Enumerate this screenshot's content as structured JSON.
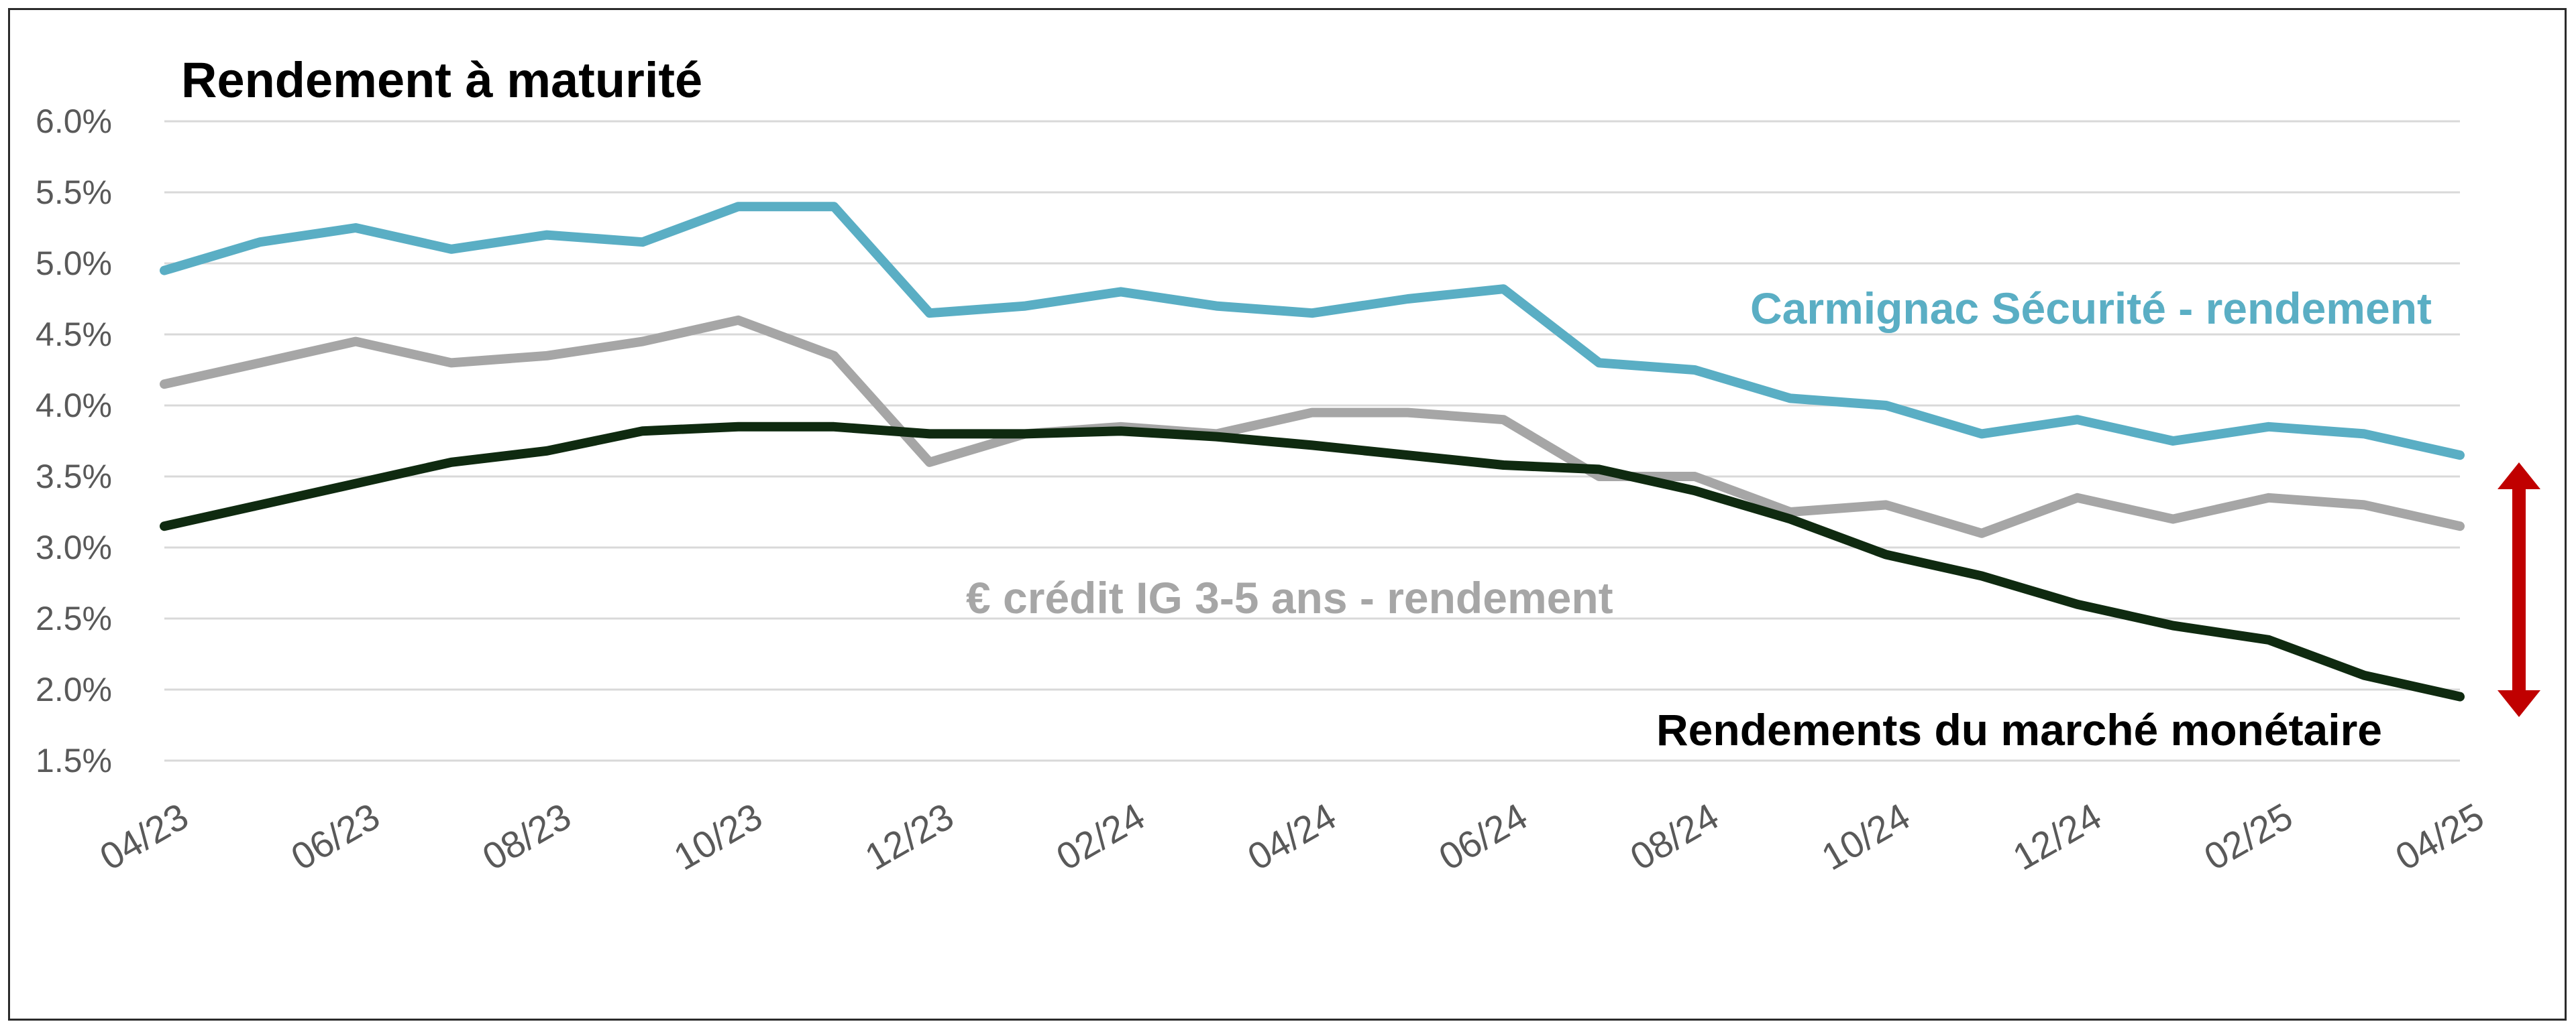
{
  "chart_data": {
    "type": "line",
    "title": "Rendement à maturité",
    "xlabel": "",
    "ylabel": "",
    "x_tick_labels": [
      "04/23",
      "06/23",
      "08/23",
      "10/23",
      "12/23",
      "02/24",
      "04/24",
      "06/24",
      "08/24",
      "10/24",
      "12/24",
      "02/25",
      "04/25"
    ],
    "y_tick_labels": [
      "6.0%",
      "5.5%",
      "5.0%",
      "4.5%",
      "4.0%",
      "3.5%",
      "3.0%",
      "2.5%",
      "2.0%",
      "1.5%"
    ],
    "ylim": [
      1.5,
      6.0
    ],
    "grid": true,
    "legend": "inline",
    "x": [
      "2023-04",
      "2023-05",
      "2023-06",
      "2023-07",
      "2023-08",
      "2023-09",
      "2023-10",
      "2023-11",
      "2023-12",
      "2024-01",
      "2024-02",
      "2024-03",
      "2024-04",
      "2024-05",
      "2024-06",
      "2024-07",
      "2024-08",
      "2024-09",
      "2024-10",
      "2024-11",
      "2024-12",
      "2025-01",
      "2025-02",
      "2025-03",
      "2025-04"
    ],
    "series": [
      {
        "name": "Carmignac Sécurité - rendement",
        "color": "#5aaec4",
        "values": [
          4.95,
          5.15,
          5.25,
          5.1,
          5.2,
          5.15,
          5.4,
          5.4,
          4.65,
          4.7,
          4.8,
          4.7,
          4.65,
          4.75,
          4.82,
          4.3,
          4.25,
          4.05,
          4.0,
          3.8,
          3.9,
          3.75,
          3.85,
          3.8,
          3.65
        ]
      },
      {
        "name": "€ crédit IG 3-5 ans - rendement",
        "color": "#a6a6a6",
        "values": [
          4.15,
          4.3,
          4.45,
          4.3,
          4.35,
          4.45,
          4.6,
          4.35,
          3.6,
          3.8,
          3.85,
          3.8,
          3.95,
          3.95,
          3.9,
          3.5,
          3.5,
          3.25,
          3.3,
          3.1,
          3.35,
          3.2,
          3.35,
          3.3,
          3.15
        ]
      },
      {
        "name": "Rendements du marché monétaire",
        "color": "#0f2a10",
        "values": [
          3.15,
          3.3,
          3.45,
          3.6,
          3.68,
          3.82,
          3.85,
          3.85,
          3.8,
          3.8,
          3.82,
          3.78,
          3.72,
          3.65,
          3.58,
          3.55,
          3.4,
          3.2,
          2.95,
          2.8,
          2.6,
          2.45,
          2.35,
          2.1,
          1.95
        ]
      }
    ],
    "annotations": [
      "Carmignac Sécurité - rendement",
      "€ crédit IG 3-5 ans - rendement",
      "Rendements du marché monétaire"
    ],
    "arrow_color": "#c00000"
  }
}
